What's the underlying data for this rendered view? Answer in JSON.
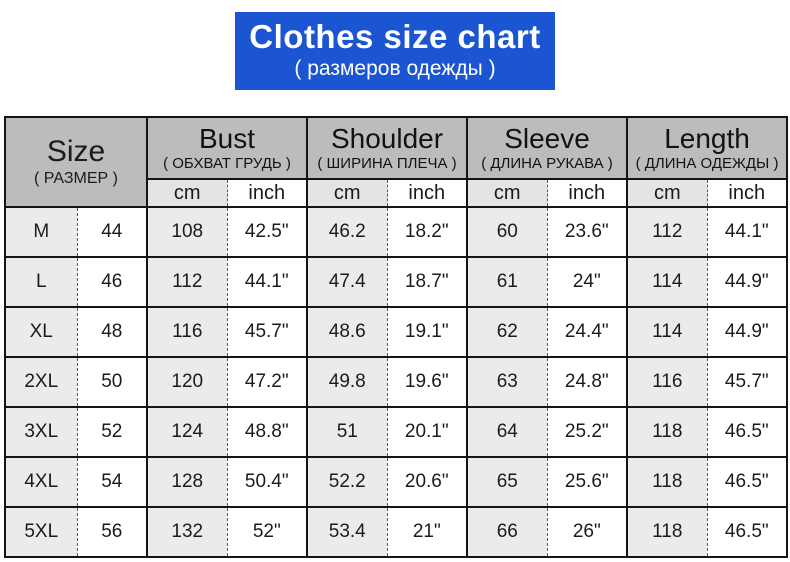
{
  "banner": {
    "title": "Clothes size chart",
    "subtitle": "( размеров одежды )"
  },
  "colors": {
    "banner_bg": "#1c55d1",
    "banner_text": "#ffffff",
    "header_bg": "#bcbcbc",
    "shaded_col_bg": "#ebebeb",
    "unit_cm_bg": "#e4e4e4",
    "border": "#141414",
    "text": "#1b1b1b"
  },
  "table": {
    "size_header": {
      "label": "Size",
      "sublabel": "( РАЗМЕР )"
    },
    "groups": [
      {
        "label": "Bust",
        "sublabel": "( ОБХВАТ ГРУДЬ )"
      },
      {
        "label": "Shoulder",
        "sublabel": "( ШИРИНА ПЛЕЧА )"
      },
      {
        "label": "Sleeve",
        "sublabel": "( ДЛИНА РУКАВА )"
      },
      {
        "label": "Length",
        "sublabel": "( ДЛИНА ОДЕЖДЫ )"
      }
    ],
    "units": [
      "cm",
      "inch"
    ],
    "rows": [
      [
        "M",
        "44",
        "108",
        "42.5\"",
        "46.2",
        "18.2\"",
        "60",
        "23.6\"",
        "112",
        "44.1\""
      ],
      [
        "L",
        "46",
        "112",
        "44.1\"",
        "47.4",
        "18.7\"",
        "61",
        "24\"",
        "114",
        "44.9\""
      ],
      [
        "XL",
        "48",
        "116",
        "45.7\"",
        "48.6",
        "19.1\"",
        "62",
        "24.4\"",
        "114",
        "44.9\""
      ],
      [
        "2XL",
        "50",
        "120",
        "47.2\"",
        "49.8",
        "19.6\"",
        "63",
        "24.8\"",
        "116",
        "45.7\""
      ],
      [
        "3XL",
        "52",
        "124",
        "48.8\"",
        "51",
        "20.1\"",
        "64",
        "25.2\"",
        "118",
        "46.5\""
      ],
      [
        "4XL",
        "54",
        "128",
        "50.4\"",
        "52.2",
        "20.6\"",
        "65",
        "25.6\"",
        "118",
        "46.5\""
      ],
      [
        "5XL",
        "56",
        "132",
        "52\"",
        "53.4",
        "21\"",
        "66",
        "26\"",
        "118",
        "46.5\""
      ]
    ]
  },
  "chart_data": {
    "type": "table",
    "title": "Clothes size chart ( размеров одежды )",
    "columns": [
      "Size",
      "Size number",
      "Bust cm",
      "Bust inch",
      "Shoulder cm",
      "Shoulder inch",
      "Sleeve cm",
      "Sleeve inch",
      "Length cm",
      "Length inch"
    ],
    "rows": [
      [
        "M",
        44,
        108,
        "42.5\"",
        46.2,
        "18.2\"",
        60,
        "23.6\"",
        112,
        "44.1\""
      ],
      [
        "L",
        46,
        112,
        "44.1\"",
        47.4,
        "18.7\"",
        61,
        "24\"",
        114,
        "44.9\""
      ],
      [
        "XL",
        48,
        116,
        "45.7\"",
        48.6,
        "19.1\"",
        62,
        "24.4\"",
        114,
        "44.9\""
      ],
      [
        "2XL",
        50,
        120,
        "47.2\"",
        49.8,
        "19.6\"",
        63,
        "24.8\"",
        116,
        "45.7\""
      ],
      [
        "3XL",
        52,
        124,
        "48.8\"",
        51,
        "20.1\"",
        64,
        "25.2\"",
        118,
        "46.5\""
      ],
      [
        "4XL",
        54,
        128,
        "50.4\"",
        52.2,
        "20.6\"",
        65,
        "25.6\"",
        118,
        "46.5\""
      ],
      [
        "5XL",
        56,
        132,
        "52\"",
        53.4,
        "21\"",
        66,
        "26\"",
        118,
        "46.5\""
      ]
    ]
  }
}
